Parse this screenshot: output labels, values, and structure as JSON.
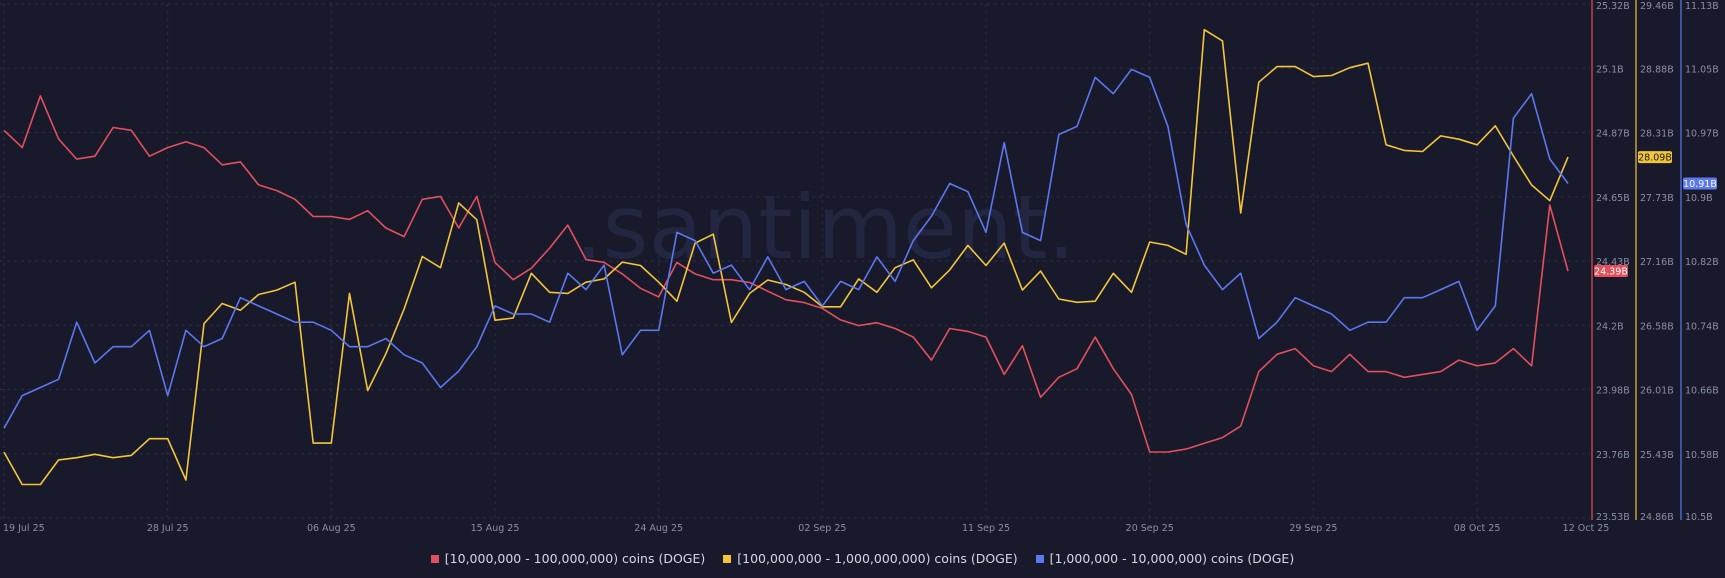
{
  "watermark": ".santiment.",
  "colors": {
    "background": "#181a2b",
    "grid": "#2a2d40",
    "tick_text": "#8a8fa6",
    "red": "#e2505c",
    "yellow": "#f2c53a",
    "blue": "#5b78ee"
  },
  "chart_data": {
    "type": "line",
    "grid": true,
    "legend_position": "bottom-center",
    "x_ticks": [
      "19 Jul 25",
      "28 Jul 25",
      "06 Aug 25",
      "15 Aug 25",
      "24 Aug 25",
      "02 Sep 25",
      "11 Sep 25",
      "20 Sep 25",
      "29 Sep 25",
      "08 Oct 25",
      "12 Oct 25"
    ],
    "x_tick_positions": [
      0,
      9,
      18,
      27,
      36,
      45,
      54,
      63,
      72,
      81,
      85
    ],
    "y_axes": [
      {
        "id": "red",
        "ticks": [
          "25.32B",
          "25.1B",
          "24.87B",
          "24.65B",
          "24.43B",
          "24.2B",
          "23.98B",
          "23.76B",
          "23.53B"
        ],
        "range": [
          23.53,
          25.32
        ],
        "current_label": "24.39B"
      },
      {
        "id": "yellow",
        "ticks": [
          "29.46B",
          "28.88B",
          "28.31B",
          "27.73B",
          "27.16B",
          "26.58B",
          "26.01B",
          "25.43B",
          "24.86B"
        ],
        "range": [
          24.86,
          29.46
        ],
        "current_label": "28.09B"
      },
      {
        "id": "blue",
        "ticks": [
          "11.13B",
          "11.05B",
          "10.97B",
          "10.9B",
          "10.82B",
          "10.74B",
          "10.66B",
          "10.58B",
          "10.5B"
        ],
        "range": [
          10.5,
          11.13
        ],
        "current_label": "10.91B"
      }
    ],
    "series": [
      {
        "name": "[10,000,000 - 100,000,000) coins (DOGE)",
        "axis": "red",
        "values": [
          24.88,
          24.82,
          25.0,
          24.85,
          24.78,
          24.79,
          24.89,
          24.88,
          24.79,
          24.82,
          24.84,
          24.82,
          24.76,
          24.77,
          24.69,
          24.67,
          24.64,
          24.58,
          24.58,
          24.57,
          24.6,
          24.54,
          24.51,
          24.64,
          24.65,
          24.54,
          24.65,
          24.42,
          24.36,
          24.4,
          24.47,
          24.55,
          24.43,
          24.42,
          24.38,
          24.33,
          24.3,
          24.42,
          24.38,
          24.36,
          24.36,
          24.35,
          24.32,
          24.29,
          24.28,
          24.26,
          24.22,
          24.2,
          24.21,
          24.19,
          24.16,
          24.08,
          24.19,
          24.18,
          24.16,
          24.03,
          24.13,
          23.95,
          24.02,
          24.05,
          24.16,
          24.05,
          23.96,
          23.76,
          23.76,
          23.77,
          23.79,
          23.81,
          23.85,
          24.04,
          24.1,
          24.12,
          24.06,
          24.04,
          24.1,
          24.04,
          24.04,
          24.02,
          24.03,
          24.04,
          24.08,
          24.06,
          24.07,
          24.12,
          24.06,
          24.62,
          24.39
        ],
        "color_key": "red"
      },
      {
        "name": "[100,000,000 - 1,000,000,000) coins (DOGE)",
        "axis": "yellow",
        "values": [
          25.45,
          25.16,
          25.16,
          25.38,
          25.4,
          25.43,
          25.4,
          25.42,
          25.57,
          25.57,
          25.2,
          26.6,
          26.78,
          26.72,
          26.86,
          26.9,
          26.97,
          25.53,
          25.53,
          26.87,
          26.0,
          26.33,
          26.73,
          27.2,
          27.1,
          27.68,
          27.53,
          26.63,
          26.65,
          27.05,
          26.88,
          26.87,
          26.97,
          27.0,
          27.15,
          27.12,
          26.97,
          26.8,
          27.32,
          27.4,
          26.61,
          26.87,
          26.99,
          26.95,
          26.88,
          26.75,
          26.75,
          27.0,
          26.88,
          27.1,
          27.17,
          26.92,
          27.08,
          27.3,
          27.12,
          27.32,
          26.9,
          27.07,
          26.82,
          26.79,
          26.8,
          27.05,
          26.88,
          27.33,
          27.3,
          27.22,
          29.23,
          29.13,
          27.59,
          28.76,
          28.9,
          28.9,
          28.81,
          28.82,
          28.89,
          28.93,
          28.2,
          28.15,
          28.14,
          28.28,
          28.25,
          28.2,
          28.37,
          28.1,
          27.84,
          27.7,
          28.09
        ],
        "color_key": "yellow"
      },
      {
        "name": "[1,000,000 - 10,000,000) coins (DOGE)",
        "axis": "blue",
        "values": [
          10.61,
          10.65,
          10.66,
          10.67,
          10.74,
          10.69,
          10.71,
          10.71,
          10.73,
          10.65,
          10.73,
          10.71,
          10.72,
          10.77,
          10.76,
          10.75,
          10.74,
          10.74,
          10.73,
          10.71,
          10.71,
          10.72,
          10.7,
          10.69,
          10.66,
          10.68,
          10.71,
          10.76,
          10.75,
          10.75,
          10.74,
          10.8,
          10.78,
          10.81,
          10.7,
          10.73,
          10.73,
          10.85,
          10.84,
          10.8,
          10.81,
          10.78,
          10.82,
          10.78,
          10.79,
          10.76,
          10.79,
          10.78,
          10.82,
          10.79,
          10.84,
          10.87,
          10.91,
          10.9,
          10.85,
          10.96,
          10.85,
          10.84,
          10.97,
          10.98,
          11.04,
          11.02,
          11.05,
          11.04,
          10.98,
          10.86,
          10.81,
          10.78,
          10.8,
          10.72,
          10.74,
          10.77,
          10.76,
          10.75,
          10.73,
          10.74,
          10.74,
          10.77,
          10.77,
          10.78,
          10.79,
          10.73,
          10.76,
          10.99,
          11.02,
          10.94,
          10.91
        ],
        "color_key": "blue"
      }
    ]
  }
}
